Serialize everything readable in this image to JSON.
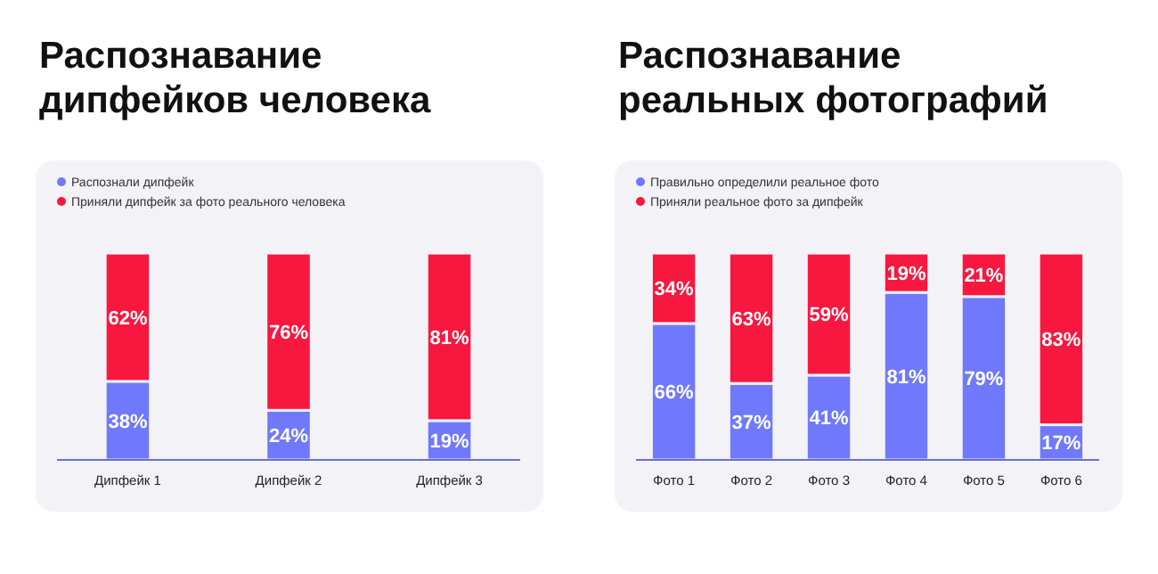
{
  "chart_data": [
    {
      "type": "bar",
      "title": "Распознавание дипфейков человека",
      "categories": [
        "Дипфейк 1",
        "Дипфейк 2",
        "Дипфейк 3"
      ],
      "stacked": true,
      "legend": "top left",
      "tick_labels": "x",
      "series": [
        {
          "name": "Распознали дипфейк",
          "color": "#7079fb",
          "values": [
            38,
            24,
            19
          ],
          "value_labels": [
            "38%",
            "24%",
            "19%"
          ]
        },
        {
          "name": "Приняли дипфейк за фото реального человека",
          "color": "#f8173f",
          "values": [
            62,
            76,
            81
          ],
          "value_labels": [
            "62%",
            "76%",
            "81%"
          ]
        }
      ]
    },
    {
      "type": "bar",
      "title": "Распознавание реальных фотографий",
      "categories": [
        "Фото 1",
        "Фото 2",
        "Фото 3",
        "Фото 4",
        "Фото 5",
        "Фото 6"
      ],
      "stacked": true,
      "legend": "top left",
      "tick_labels": "x",
      "series": [
        {
          "name": "Правильно определили реальное фото",
          "color": "#7079fb",
          "values": [
            66,
            37,
            41,
            81,
            79,
            17
          ],
          "value_labels": [
            "66%",
            "37%",
            "41%",
            "81%",
            "79%",
            "17%"
          ]
        },
        {
          "name": "Приняли реальное фото за дипфейк",
          "color": "#f8173f",
          "values": [
            34,
            63,
            59,
            19,
            21,
            83
          ],
          "value_labels": [
            "34%",
            "63%",
            "59%",
            "19%",
            "21%",
            "83%"
          ]
        }
      ]
    }
  ]
}
